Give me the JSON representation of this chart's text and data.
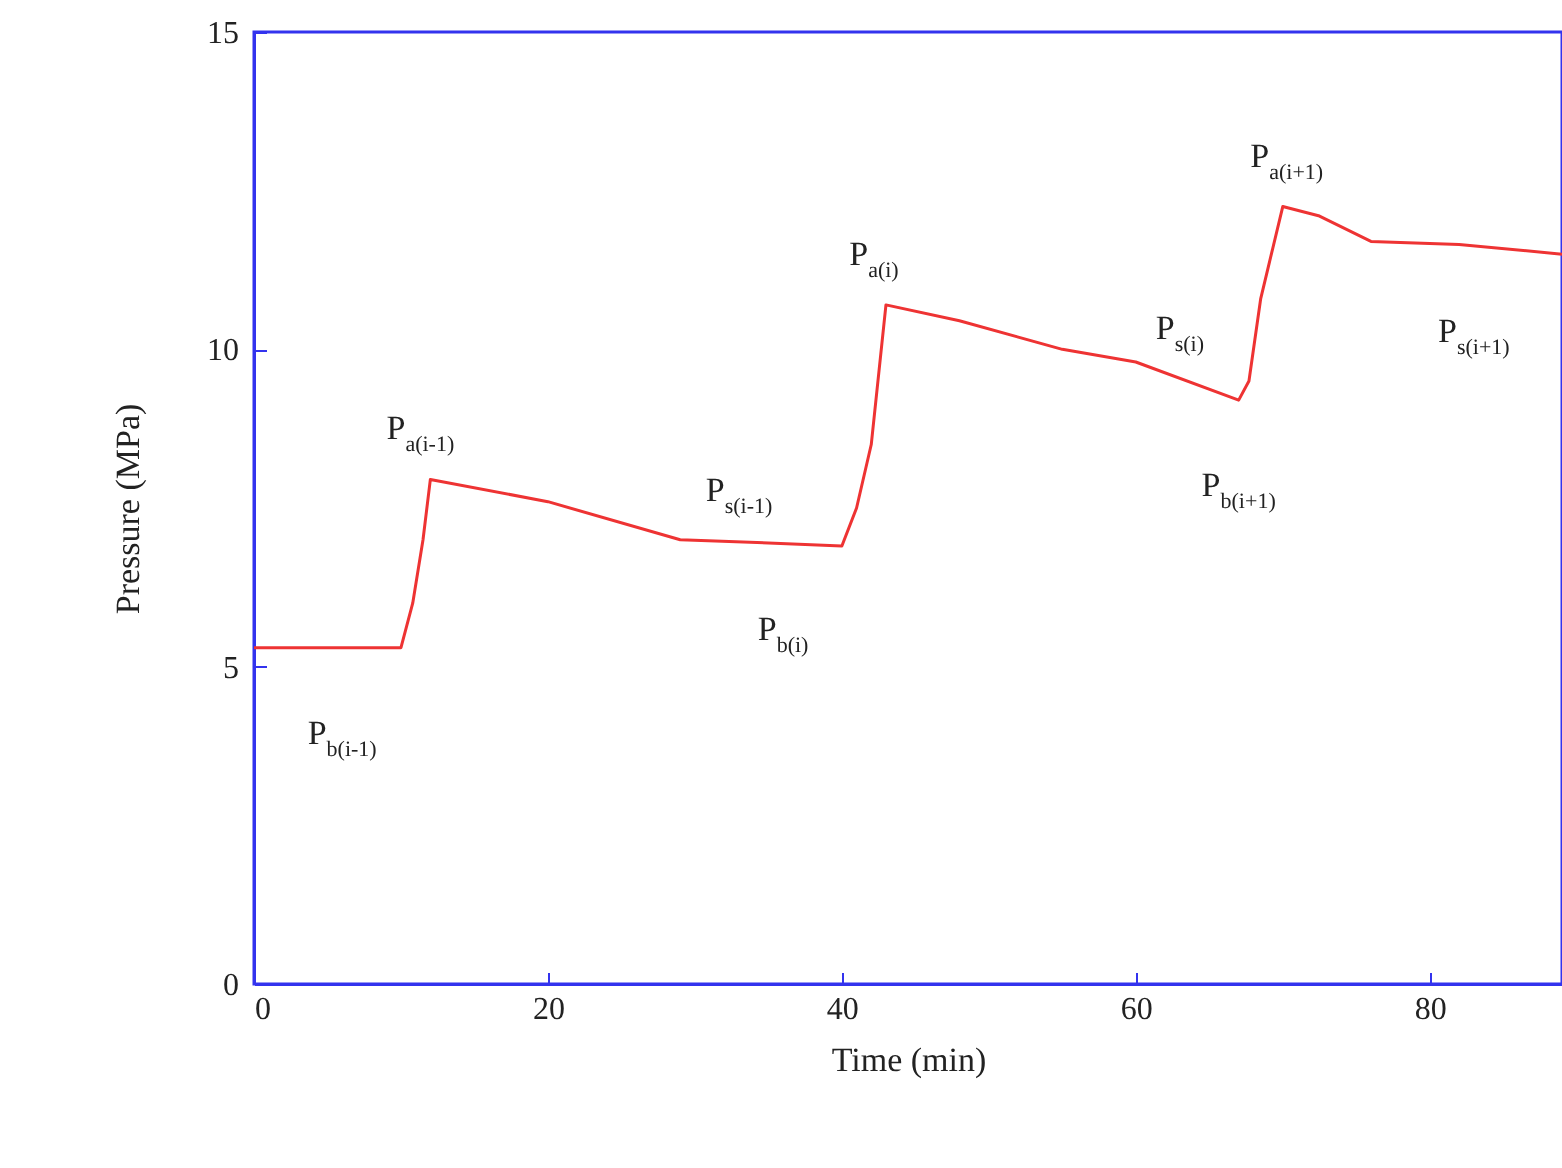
{
  "chart_data": {
    "type": "line",
    "xlabel": "Time (min)",
    "ylabel": "Pressure (MPa)",
    "xlim": [
      0,
      89
    ],
    "ylim": [
      0,
      15
    ],
    "xticks": [
      0,
      20,
      40,
      60,
      80
    ],
    "yticks": [
      0,
      5,
      10,
      15
    ],
    "grid": false,
    "marker": "none",
    "line_style": "solid",
    "series": [
      {
        "color": "#ee3333",
        "x": [
          0,
          10,
          10.8,
          11.5,
          12,
          20,
          29,
          35,
          40,
          41,
          42,
          43,
          48,
          55,
          60,
          67,
          67.7,
          68.5,
          70,
          72.5,
          76,
          82,
          89
        ],
        "values": [
          5.3,
          5.3,
          6.0,
          7.0,
          7.95,
          7.6,
          7.0,
          6.95,
          6.9,
          7.5,
          8.5,
          10.7,
          10.45,
          10.0,
          9.8,
          9.2,
          9.5,
          10.8,
          12.25,
          12.1,
          11.7,
          11.65,
          11.5
        ]
      }
    ],
    "annotations": [
      {
        "text": "P$_{b(i-1)}$",
        "x": 6,
        "y": 5.3
      },
      {
        "text": "P$_{a(i-1)}$",
        "x": 12,
        "y": 7.95
      },
      {
        "text": "P$_{s(i-1)}$",
        "x": 33,
        "y": 6.98
      },
      {
        "text": "P$_{b(i)}$",
        "x": 36,
        "y": 6.94
      },
      {
        "text": "P$_{a(i)}$",
        "x": 43,
        "y": 10.7
      },
      {
        "text": "P$_{s(i)}$",
        "x": 63,
        "y": 9.54
      },
      {
        "text": "P$_{b(i+1)}$",
        "x": 67,
        "y": 9.2
      },
      {
        "text": "P$_{a(i+1)}$",
        "x": 70,
        "y": 12.25
      },
      {
        "text": "P$_{s(i+1)}$",
        "x": 83,
        "y": 11.63
      }
    ]
  }
}
